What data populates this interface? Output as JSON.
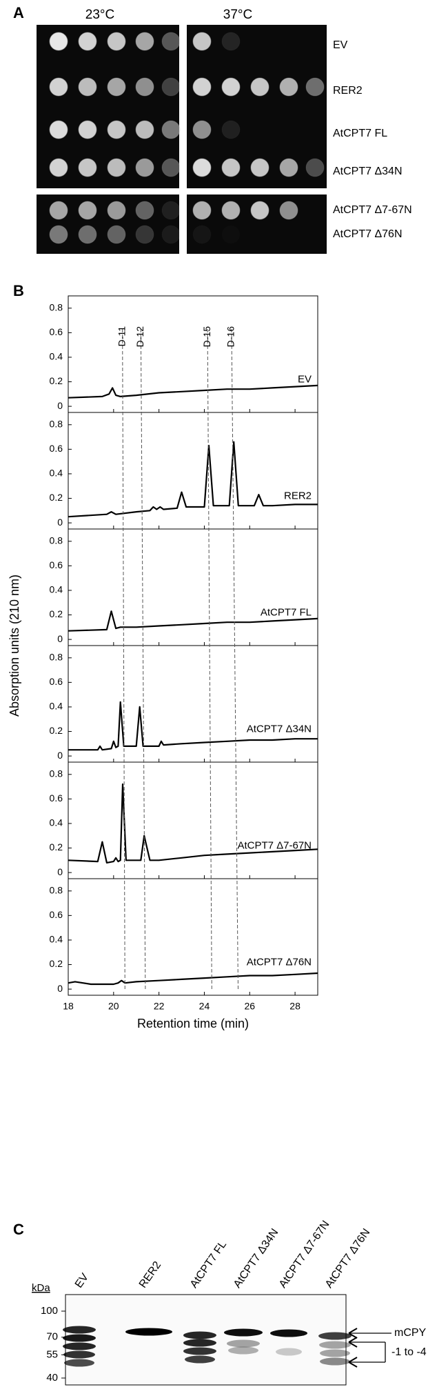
{
  "panel_a": {
    "label": "A",
    "temperatures": [
      "23°C",
      "37°C"
    ],
    "strains": [
      "EV",
      "RER2",
      "AtCPT7 FL",
      "AtCPT7 Δ34N",
      "AtCPT7 Δ7-67N",
      "AtCPT7 Δ76N"
    ]
  },
  "panel_b": {
    "label": "B",
    "ylabel": "Absorption units (210 nm)",
    "xlabel": "Retention time (min)",
    "reference_lines": [
      {
        "label": "D-11",
        "x_top": 20.39,
        "x_bottom": 20.5
      },
      {
        "label": "D-12",
        "x_top": 21.2,
        "x_bottom": 21.4
      },
      {
        "label": "D-15",
        "x_top": 24.14,
        "x_bottom": 24.33
      },
      {
        "label": "D-16",
        "x_top": 25.2,
        "x_bottom": 25.49
      }
    ]
  },
  "chart_data": [
    {
      "type": "line",
      "label": "EV",
      "color": "#000000",
      "xlim": [
        18,
        29
      ],
      "ylim": [
        -0.05,
        0.9
      ],
      "xticks": [
        18,
        20,
        22,
        24,
        26,
        28
      ],
      "yticks": [
        0,
        0.2,
        0.4,
        0.6,
        0.8
      ],
      "x": [
        18,
        19.5,
        19.8,
        19.95,
        20.1,
        20.3,
        21,
        22,
        23,
        24,
        25,
        26,
        27,
        28,
        29
      ],
      "values": [
        0.07,
        0.08,
        0.1,
        0.15,
        0.09,
        0.08,
        0.09,
        0.11,
        0.12,
        0.13,
        0.14,
        0.14,
        0.15,
        0.16,
        0.17
      ]
    },
    {
      "type": "line",
      "label": "RER2",
      "color": "#000000",
      "xlim": [
        18,
        29
      ],
      "ylim": [
        -0.05,
        0.9
      ],
      "xticks": [
        18,
        20,
        22,
        24,
        26,
        28
      ],
      "yticks": [
        0,
        0.2,
        0.4,
        0.6,
        0.8
      ],
      "x": [
        18,
        19.7,
        19.9,
        20.1,
        21,
        21.6,
        21.75,
        21.9,
        22.05,
        22.2,
        22.8,
        23.0,
        23.2,
        24.0,
        24.2,
        24.4,
        25.1,
        25.3,
        25.5,
        26.2,
        26.4,
        26.6,
        27,
        28,
        29
      ],
      "values": [
        0.05,
        0.07,
        0.09,
        0.07,
        0.09,
        0.1,
        0.13,
        0.11,
        0.13,
        0.11,
        0.12,
        0.25,
        0.13,
        0.13,
        0.63,
        0.14,
        0.14,
        0.66,
        0.14,
        0.14,
        0.23,
        0.14,
        0.14,
        0.15,
        0.15
      ]
    },
    {
      "type": "line",
      "label": "AtCPT7 FL",
      "color": "#000000",
      "xlim": [
        18,
        29
      ],
      "ylim": [
        -0.05,
        0.9
      ],
      "xticks": [
        18,
        20,
        22,
        24,
        26,
        28
      ],
      "yticks": [
        0,
        0.2,
        0.4,
        0.6,
        0.8
      ],
      "x": [
        18,
        19.7,
        19.9,
        20.1,
        20.3,
        21,
        22,
        23,
        24,
        25,
        26,
        27,
        28,
        29
      ],
      "values": [
        0.07,
        0.08,
        0.23,
        0.09,
        0.1,
        0.1,
        0.11,
        0.12,
        0.13,
        0.14,
        0.14,
        0.15,
        0.16,
        0.17
      ]
    },
    {
      "type": "line",
      "label": "AtCPT7 Δ34N",
      "color": "#000000",
      "xlim": [
        18,
        29
      ],
      "ylim": [
        -0.05,
        0.9
      ],
      "xticks": [
        18,
        20,
        22,
        24,
        26,
        28
      ],
      "yticks": [
        0,
        0.2,
        0.4,
        0.6,
        0.8
      ],
      "x": [
        18,
        19.3,
        19.4,
        19.5,
        19.9,
        20.0,
        20.1,
        20.2,
        20.3,
        20.45,
        21.0,
        21.15,
        21.3,
        21.5,
        22.0,
        22.1,
        22.2,
        23,
        24,
        25,
        26,
        27,
        28,
        29
      ],
      "values": [
        0.05,
        0.05,
        0.08,
        0.05,
        0.06,
        0.12,
        0.07,
        0.08,
        0.44,
        0.08,
        0.08,
        0.4,
        0.08,
        0.08,
        0.08,
        0.12,
        0.09,
        0.1,
        0.11,
        0.12,
        0.13,
        0.13,
        0.14,
        0.14
      ]
    },
    {
      "type": "line",
      "label": "AtCPT7 Δ7-67N",
      "color": "#000000",
      "xlim": [
        18,
        29
      ],
      "ylim": [
        -0.05,
        0.9
      ],
      "xticks": [
        18,
        20,
        22,
        24,
        26,
        28
      ],
      "yticks": [
        0,
        0.2,
        0.4,
        0.6,
        0.8
      ],
      "x": [
        18,
        19.3,
        19.5,
        19.7,
        20.0,
        20.1,
        20.2,
        20.3,
        20.4,
        20.55,
        21.2,
        21.35,
        21.45,
        21.6,
        22,
        23,
        24,
        25,
        26,
        27,
        28,
        29
      ],
      "values": [
        0.1,
        0.09,
        0.25,
        0.08,
        0.09,
        0.12,
        0.09,
        0.1,
        0.72,
        0.1,
        0.1,
        0.3,
        0.22,
        0.1,
        0.1,
        0.12,
        0.14,
        0.15,
        0.16,
        0.17,
        0.18,
        0.19
      ]
    },
    {
      "type": "line",
      "label": "AtCPT7 Δ76N",
      "color": "#000000",
      "xlim": [
        18,
        29
      ],
      "ylim": [
        -0.05,
        0.9
      ],
      "xticks": [
        18,
        20,
        22,
        24,
        26,
        28
      ],
      "yticks": [
        0,
        0.2,
        0.4,
        0.6,
        0.8
      ],
      "x": [
        18,
        18.3,
        19,
        20,
        20.2,
        20.35,
        20.5,
        21,
        22,
        23,
        24,
        25,
        26,
        27,
        28,
        29
      ],
      "values": [
        0.05,
        0.06,
        0.04,
        0.04,
        0.05,
        0.07,
        0.05,
        0.06,
        0.07,
        0.08,
        0.09,
        0.1,
        0.11,
        0.11,
        0.12,
        0.13
      ]
    }
  ],
  "panel_c": {
    "label": "C",
    "unit": "kDa",
    "kda_markers": [
      100,
      70,
      55,
      40
    ],
    "lanes": [
      "EV",
      "RER2",
      "AtCPT7 FL",
      "AtCPT7 Δ34N",
      "AtCPT7 Δ7-67N",
      "AtCPT7 Δ76N"
    ],
    "band_labels": [
      "mCPY",
      "-1 to -4"
    ]
  }
}
